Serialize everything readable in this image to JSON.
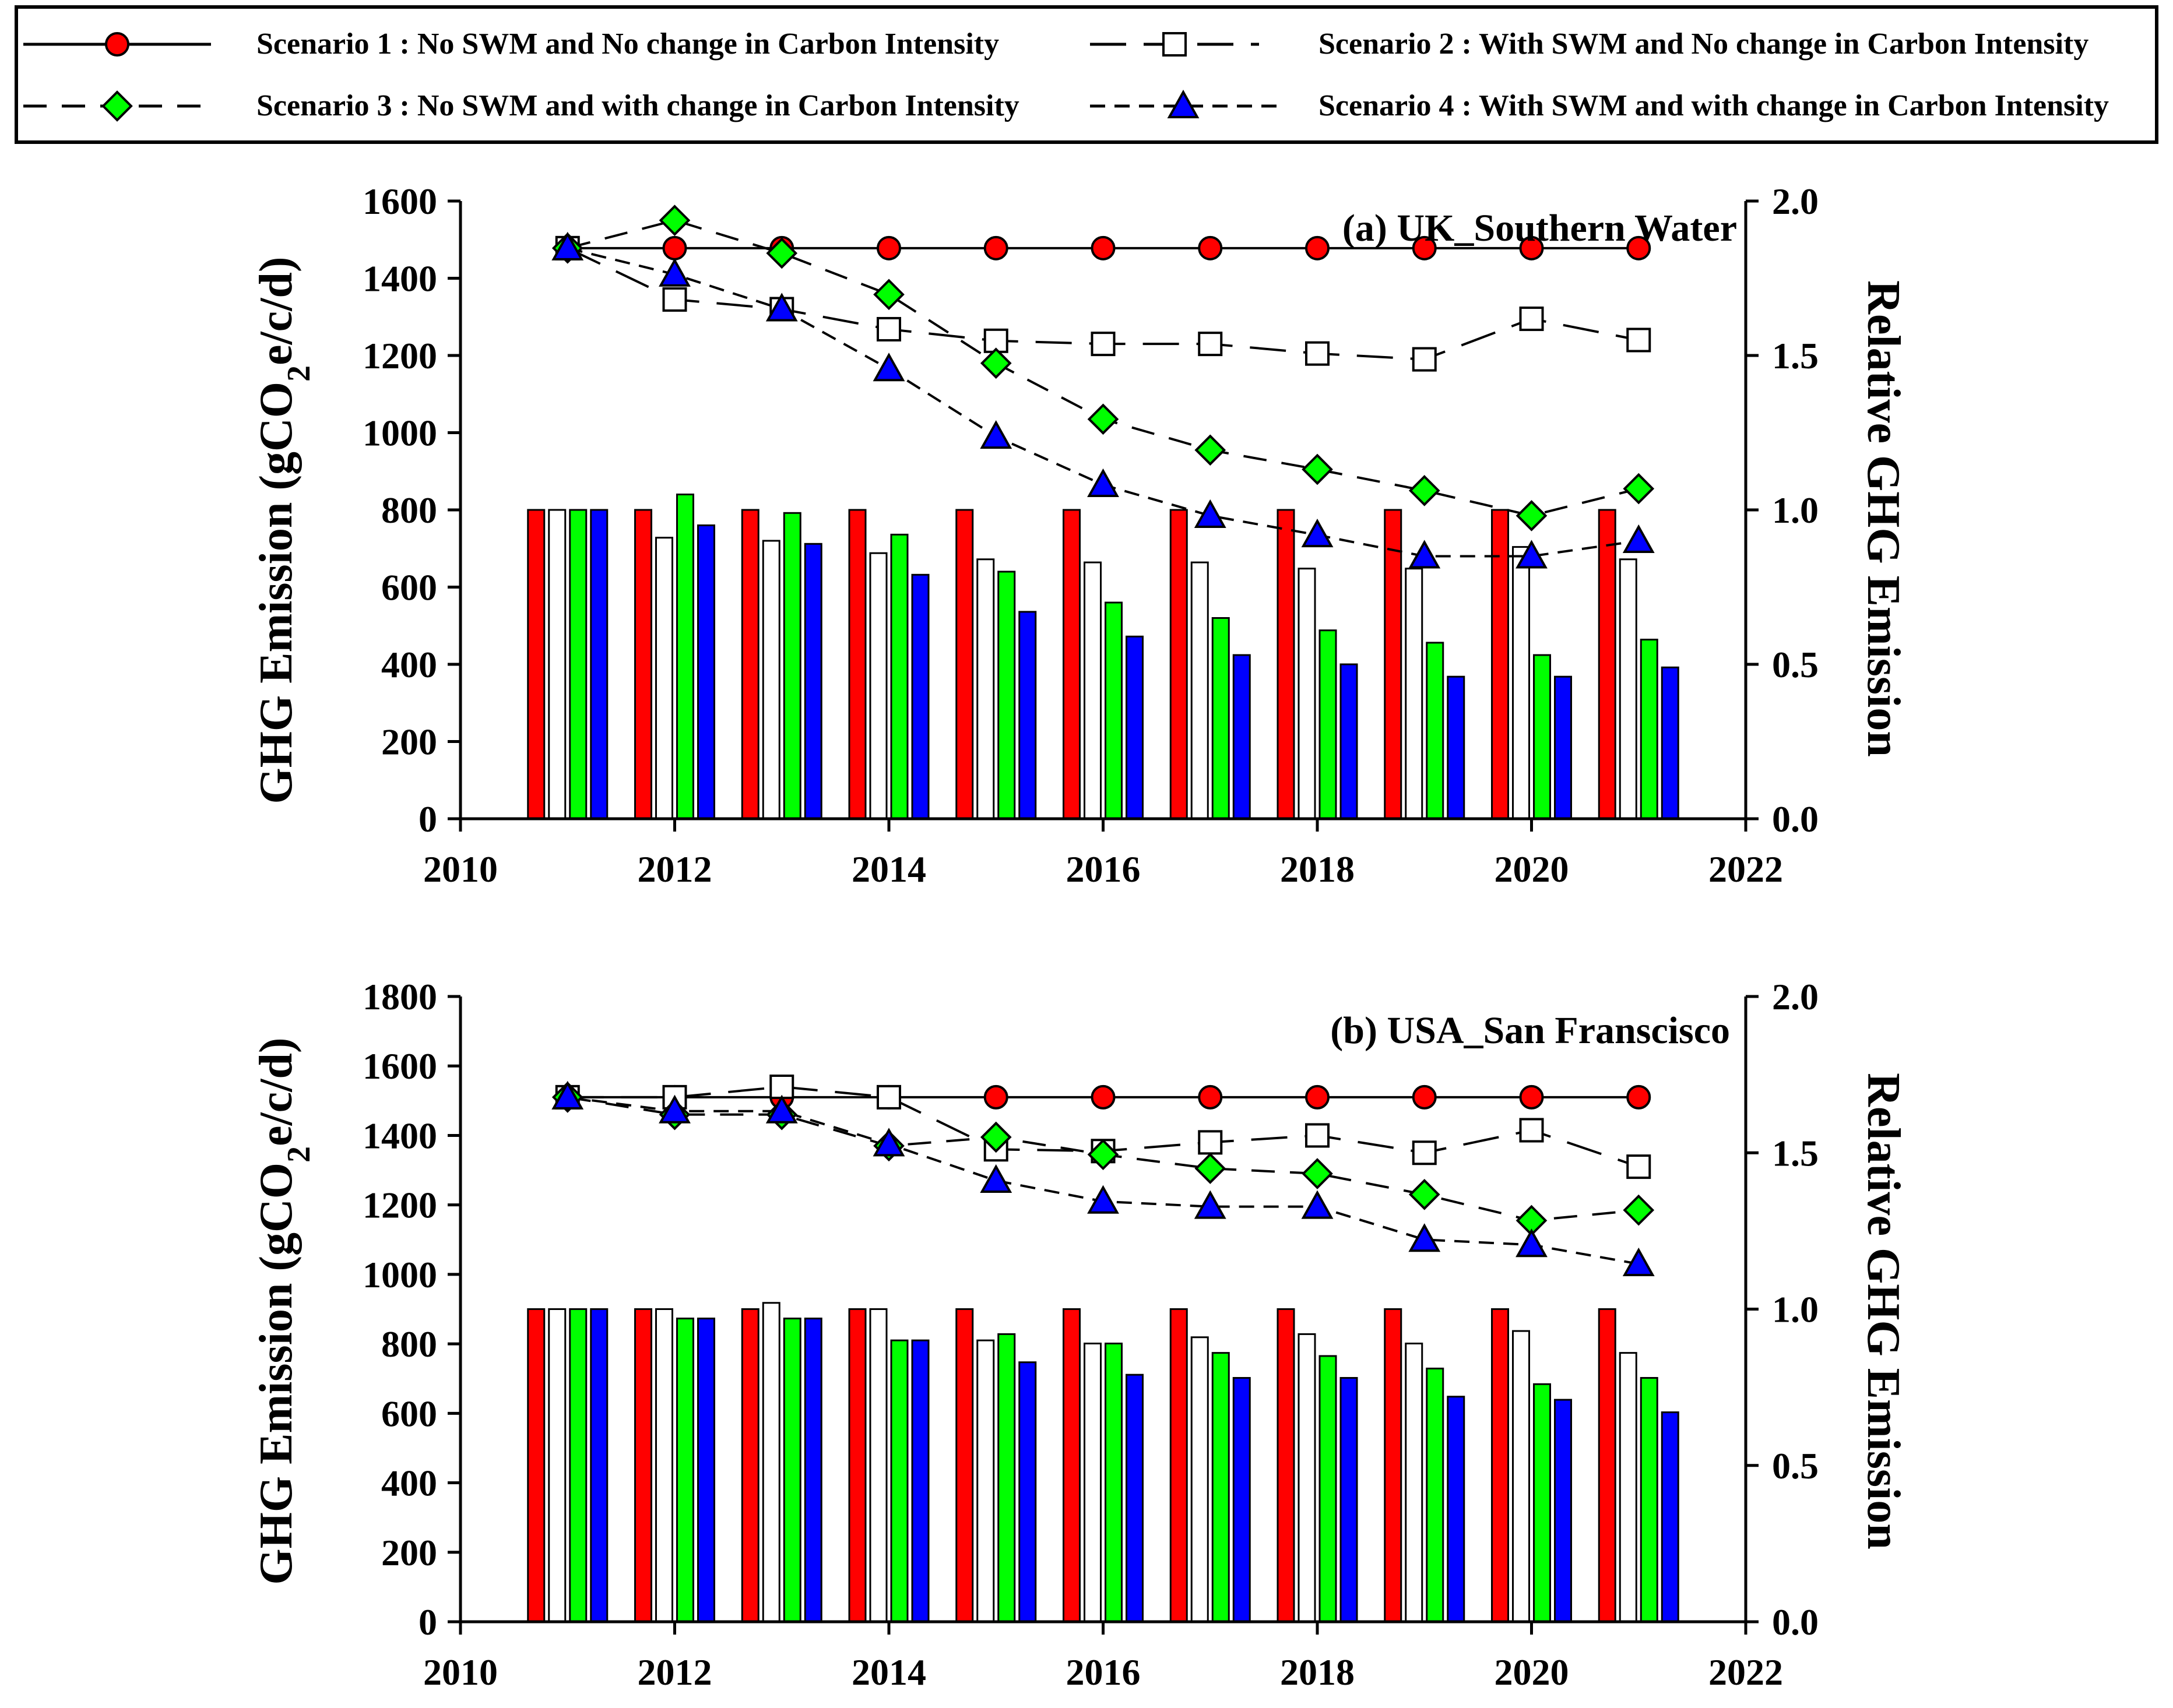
{
  "colors": {
    "scenario1": "#ff0000",
    "scenario2": "#ffffff",
    "scenario3": "#00ff00",
    "scenario4": "#0000ff",
    "axis": "#000000"
  },
  "legend": {
    "entries": [
      {
        "label": "Scenario 1 : No SWM and No change in Carbon Intensity",
        "marker": "circle",
        "line": "solid",
        "color": "#ff0000"
      },
      {
        "label": "Scenario 2 : With SWM and No change in Carbon Intensity",
        "marker": "square",
        "line": "longdash",
        "color": "#ffffff"
      },
      {
        "label": "Scenario 3 : No SWM and with change in Carbon Intensity",
        "marker": "diamond",
        "line": "dash",
        "color": "#00ff00"
      },
      {
        "label": "Scenario 4 : With SWM and with change in Carbon Intensity",
        "marker": "triangle",
        "line": "shortdash",
        "color": "#0000ff"
      }
    ]
  },
  "chart_data": [
    {
      "type": "bar+line",
      "title": "(a) UK_Southern Water",
      "ylabel_main": "GHG Emission (gCO",
      "ylabel_sub": "2",
      "ylabel_tail": "e/c/d)",
      "y2label": "Relative GHG Emission",
      "xlim": [
        2010,
        2022
      ],
      "xticks": [
        "2010",
        "2012",
        "2014",
        "2016",
        "2018",
        "2020",
        "2022"
      ],
      "ylim": [
        0,
        1600
      ],
      "yticks": [
        "0",
        "200",
        "400",
        "600",
        "800",
        "1000",
        "1200",
        "1400",
        "1600"
      ],
      "y2lim": [
        0,
        2.0
      ],
      "y2ticks": [
        "0.0",
        "0.5",
        "1.0",
        "1.5",
        "2.0"
      ],
      "x": [
        2011,
        2012,
        2013,
        2014,
        2015,
        2016,
        2017,
        2018,
        2019,
        2020,
        2021
      ],
      "series": [
        {
          "name": "Scenario 1",
          "lines": [
            1478,
            1478,
            1478,
            1478,
            1478,
            1478,
            1478,
            1478,
            1478,
            1478,
            1478
          ],
          "bars": [
            1.0,
            1.0,
            1.0,
            1.0,
            1.0,
            1.0,
            1.0,
            1.0,
            1.0,
            1.0,
            1.0
          ]
        },
        {
          "name": "Scenario 2",
          "lines": [
            1478,
            1345,
            1320,
            1268,
            1238,
            1230,
            1230,
            1205,
            1190,
            1295,
            1240
          ],
          "bars": [
            1.0,
            0.91,
            0.9,
            0.86,
            0.84,
            0.83,
            0.83,
            0.81,
            0.81,
            0.88,
            0.84
          ]
        },
        {
          "name": "Scenario 3",
          "lines": [
            1478,
            1550,
            1465,
            1358,
            1180,
            1035,
            955,
            905,
            850,
            785,
            855
          ],
          "bars": [
            1.0,
            1.05,
            0.99,
            0.92,
            0.8,
            0.7,
            0.65,
            0.61,
            0.57,
            0.53,
            0.58
          ]
        },
        {
          "name": "Scenario 4",
          "lines": [
            1478,
            1410,
            1320,
            1165,
            990,
            865,
            785,
            735,
            680,
            680,
            720
          ],
          "bars": [
            1.0,
            0.95,
            0.89,
            0.79,
            0.67,
            0.59,
            0.53,
            0.5,
            0.46,
            0.46,
            0.49
          ]
        }
      ]
    },
    {
      "type": "bar+line",
      "title": "(b) USA_San Franscisco",
      "ylabel_main": "GHG Emission (gCO",
      "ylabel_sub": "2",
      "ylabel_tail": "e/c/d)",
      "y2label": "Relative GHG Emission",
      "xlim": [
        2010,
        2022
      ],
      "xticks": [
        "2010",
        "2012",
        "2014",
        "2016",
        "2018",
        "2020",
        "2022"
      ],
      "ylim": [
        0,
        1800
      ],
      "yticks": [
        "0",
        "200",
        "400",
        "600",
        "800",
        "1000",
        "1200",
        "1400",
        "1600",
        "1800"
      ],
      "y2lim": [
        0,
        2.0
      ],
      "y2ticks": [
        "0.0",
        "0.5",
        "1.0",
        "1.5",
        "2.0"
      ],
      "x": [
        2011,
        2012,
        2013,
        2014,
        2015,
        2016,
        2017,
        2018,
        2019,
        2020,
        2021
      ],
      "series": [
        {
          "name": "Scenario 1",
          "lines": [
            1510,
            1510,
            1510,
            1510,
            1510,
            1510,
            1510,
            1510,
            1510,
            1510,
            1510
          ],
          "bars": [
            1.0,
            1.0,
            1.0,
            1.0,
            1.0,
            1.0,
            1.0,
            1.0,
            1.0,
            1.0,
            1.0
          ]
        },
        {
          "name": "Scenario 2",
          "lines": [
            1510,
            1510,
            1540,
            1510,
            1360,
            1355,
            1380,
            1400,
            1350,
            1415,
            1310
          ],
          "bars": [
            1.0,
            1.0,
            1.02,
            1.0,
            0.9,
            0.89,
            0.91,
            0.92,
            0.89,
            0.93,
            0.86
          ]
        },
        {
          "name": "Scenario 3",
          "lines": [
            1510,
            1460,
            1460,
            1370,
            1395,
            1345,
            1305,
            1290,
            1230,
            1155,
            1185
          ],
          "bars": [
            1.0,
            0.97,
            0.97,
            0.9,
            0.92,
            0.89,
            0.86,
            0.85,
            0.81,
            0.76,
            0.78
          ]
        },
        {
          "name": "Scenario 4",
          "lines": [
            1510,
            1470,
            1470,
            1375,
            1270,
            1210,
            1195,
            1195,
            1100,
            1085,
            1030
          ],
          "bars": [
            1.0,
            0.97,
            0.97,
            0.9,
            0.83,
            0.79,
            0.78,
            0.78,
            0.72,
            0.71,
            0.67
          ]
        }
      ]
    }
  ]
}
